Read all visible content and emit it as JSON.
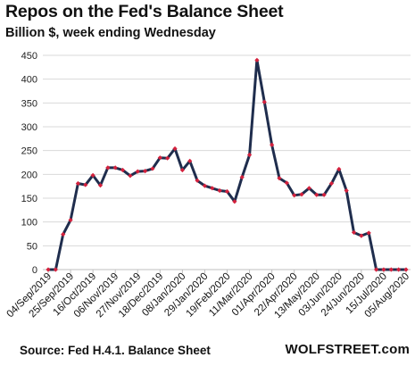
{
  "chart_data": {
    "type": "line",
    "title": "Repos on the Fed's Balance Sheet",
    "subtitle": "Billion $, week ending Wednesday",
    "source": "Source: Fed H.4.1. Balance Sheet",
    "brand": "WOLFSTREET.com",
    "ylim": [
      0,
      450
    ],
    "yticks": [
      0,
      50,
      100,
      150,
      200,
      250,
      300,
      350,
      400,
      450
    ],
    "grid": true,
    "xtick_labels": [
      "04/Sep/2019",
      "25/Sep/2019",
      "16/Oct/2019",
      "06/Nov/2019",
      "27/Nov/2019",
      "18/Dec/2019",
      "08/Jan/2020",
      "29/Jan/2020",
      "19/Feb/2020",
      "11/Mar/2020",
      "01/Apr/2020",
      "22/Apr/2020",
      "13/May/2020",
      "03/Jun/2020",
      "24/Jun/2020",
      "15/Jul/2020",
      "05/Aug/2020"
    ],
    "xtick_every": 3,
    "values": [
      0,
      0,
      74,
      104,
      181,
      178,
      198,
      177,
      214,
      214,
      209,
      197,
      206,
      207,
      212,
      235,
      234,
      254,
      209,
      228,
      187,
      176,
      171,
      166,
      164,
      143,
      194,
      241,
      440,
      352,
      262,
      192,
      182,
      156,
      158,
      171,
      157,
      157,
      181,
      211,
      166,
      78,
      71,
      77,
      0,
      0,
      0,
      0,
      0
    ],
    "colors": {
      "line": "#1f2d4d",
      "marker": "#d4213d",
      "grid": "#d9d9d9",
      "axis": "#bfbfbf"
    }
  }
}
